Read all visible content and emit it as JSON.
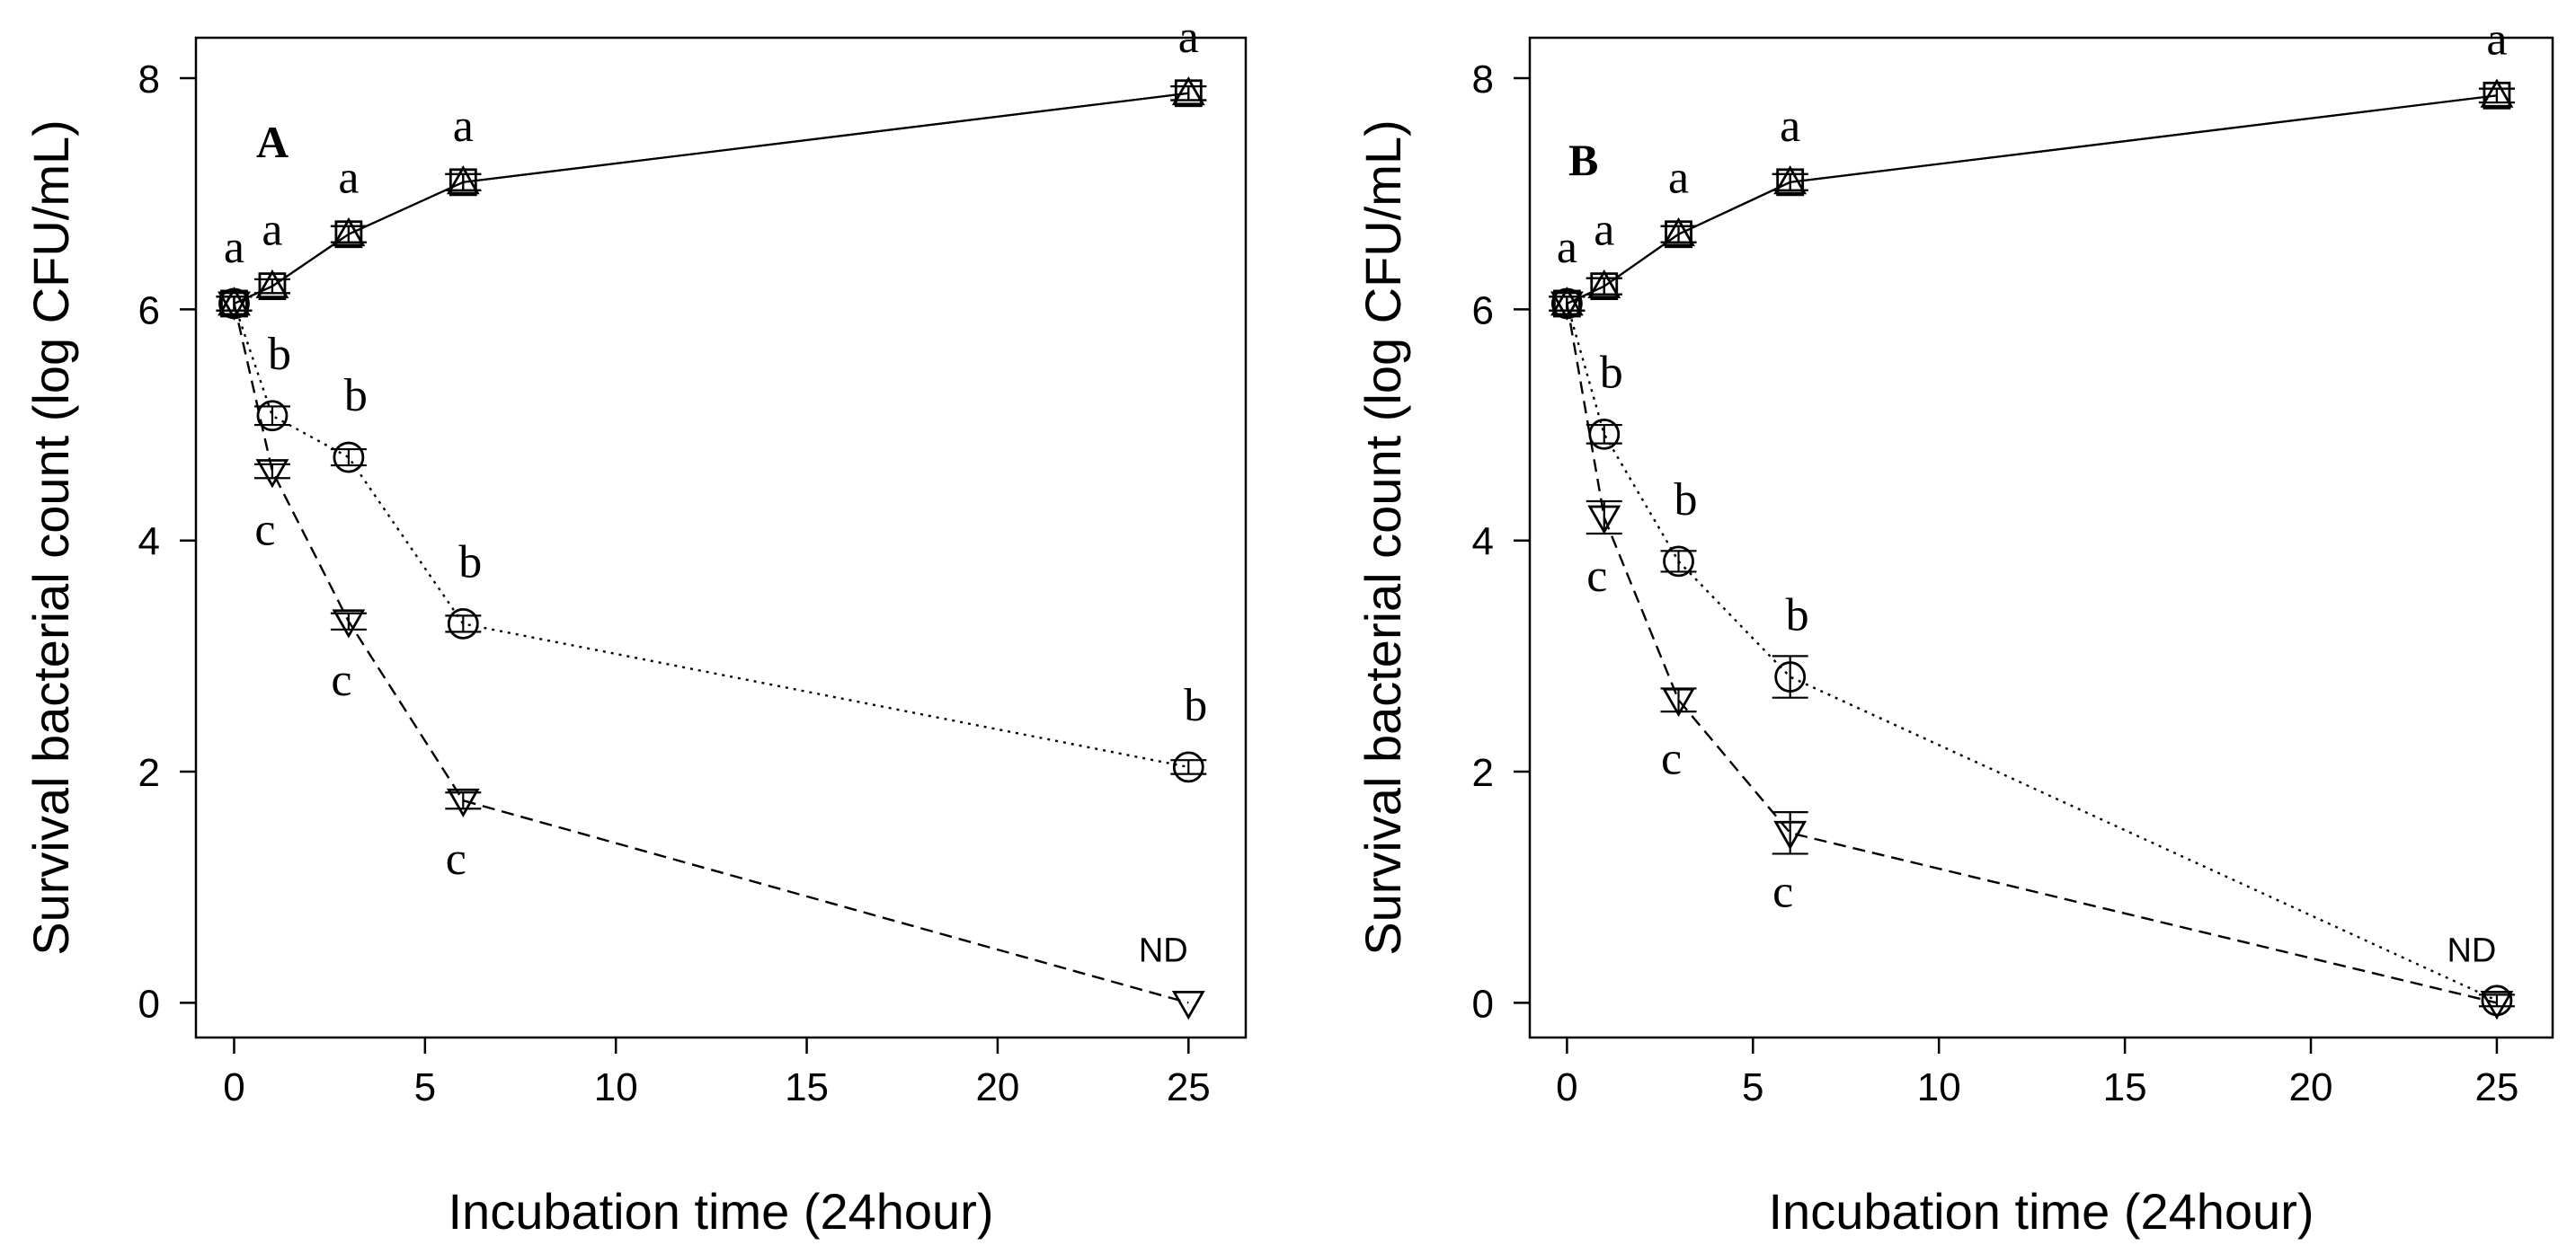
{
  "chart_data": [
    {
      "type": "line",
      "title": "A",
      "xlabel": "Incubation time (24hour)",
      "ylabel": "Survival bacterial count (log CFU/mL)",
      "xlim": [
        -1,
        26.5
      ],
      "ylim": [
        -0.3,
        8.35
      ],
      "x_ticks": [
        0,
        5,
        10,
        15,
        20,
        25
      ],
      "y_ticks": [
        0,
        2,
        4,
        6,
        8
      ],
      "series": [
        {
          "name": "control-triangle-up",
          "marker": "triangle-up",
          "line": "solid",
          "x": [
            0,
            1,
            3,
            6,
            25
          ],
          "y": [
            6.05,
            6.2,
            6.65,
            7.1,
            7.87
          ],
          "err": [
            0.06,
            0.06,
            0.07,
            0.07,
            0.06
          ],
          "labels": [
            "a",
            "a",
            "a",
            "a",
            "a"
          ]
        },
        {
          "name": "control-square",
          "marker": "square",
          "line": "solid",
          "x": [
            0,
            1,
            3,
            6,
            25
          ],
          "y": [
            6.05,
            6.2,
            6.65,
            7.1,
            7.87
          ],
          "err": [
            0.06,
            0.06,
            0.07,
            0.07,
            0.06
          ],
          "labels": [
            "",
            "",
            "",
            "",
            ""
          ]
        },
        {
          "name": "treatment-circle",
          "marker": "circle",
          "line": "dotted",
          "x": [
            0,
            1,
            3,
            6,
            25
          ],
          "y": [
            6.05,
            5.08,
            4.72,
            3.28,
            2.04
          ],
          "err": [
            0.06,
            0.08,
            0.07,
            0.07,
            0.06
          ],
          "labels": [
            "",
            "b",
            "b",
            "b",
            "b"
          ]
        },
        {
          "name": "treatment-triangle-down",
          "marker": "triangle-down",
          "line": "dashed",
          "x": [
            0,
            1,
            3,
            6,
            25
          ],
          "y": [
            6.05,
            4.6,
            3.3,
            1.75,
            0.0
          ],
          "err": [
            0.06,
            0.06,
            0.07,
            0.07,
            0.0
          ],
          "labels": [
            "",
            "c",
            "c",
            "c",
            ""
          ]
        }
      ],
      "annotations": [
        {
          "text": "ND",
          "x": 25,
          "y": 0.45
        }
      ]
    },
    {
      "type": "line",
      "title": "B",
      "xlabel": "Incubation time (24hour)",
      "ylabel": "Survival bacterial count (log CFU/mL)",
      "xlim": [
        -1,
        26.5
      ],
      "ylim": [
        -0.3,
        8.35
      ],
      "x_ticks": [
        0,
        5,
        10,
        15,
        20,
        25
      ],
      "y_ticks": [
        0,
        2,
        4,
        6,
        8
      ],
      "series": [
        {
          "name": "control-triangle-up",
          "marker": "triangle-up",
          "line": "solid",
          "x": [
            0,
            1,
            3,
            6,
            25
          ],
          "y": [
            6.05,
            6.2,
            6.65,
            7.1,
            7.85
          ],
          "err": [
            0.06,
            0.07,
            0.07,
            0.07,
            0.06
          ],
          "labels": [
            "a",
            "a",
            "a",
            "a",
            "a"
          ]
        },
        {
          "name": "control-square",
          "marker": "square",
          "line": "solid",
          "x": [
            0,
            1,
            3,
            6,
            25
          ],
          "y": [
            6.05,
            6.2,
            6.65,
            7.1,
            7.85
          ],
          "err": [
            0.06,
            0.07,
            0.07,
            0.07,
            0.06
          ],
          "labels": [
            "",
            "",
            "",
            "",
            ""
          ]
        },
        {
          "name": "treatment-circle",
          "marker": "circle",
          "line": "dotted",
          "x": [
            0,
            1,
            3,
            6,
            25
          ],
          "y": [
            6.05,
            4.92,
            3.82,
            2.82,
            0.02
          ],
          "err": [
            0.06,
            0.08,
            0.09,
            0.18,
            0.05
          ],
          "labels": [
            "",
            "b",
            "b",
            "b",
            ""
          ]
        },
        {
          "name": "treatment-triangle-down",
          "marker": "triangle-down",
          "line": "dashed",
          "x": [
            0,
            1,
            3,
            6,
            25
          ],
          "y": [
            6.05,
            4.2,
            2.62,
            1.47,
            0.0
          ],
          "err": [
            0.06,
            0.14,
            0.1,
            0.18,
            0.0
          ],
          "labels": [
            "",
            "c",
            "c",
            "c",
            ""
          ]
        }
      ],
      "annotations": [
        {
          "text": "ND",
          "x": 25,
          "y": 0.45
        }
      ]
    }
  ]
}
